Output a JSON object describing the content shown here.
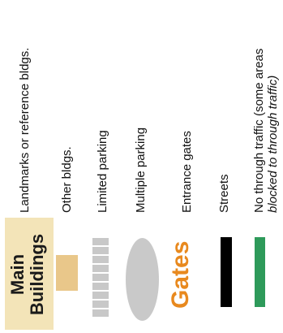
{
  "legend": {
    "landmarks": {
      "label": "Landmarks or reference bldgs.",
      "swatch_text_line1": "Main",
      "swatch_text_line2": "Buildings",
      "swatch_color": "#f3e4b8"
    },
    "other_bldgs": {
      "label": "Other bldgs.",
      "swatch_color": "#e9c78a"
    },
    "limited_parking": {
      "label": "Limited parking",
      "swatch_color": "#c8c8c8"
    },
    "multiple_parking": {
      "label": "Multiple parking",
      "swatch_color": "#c9c9c9"
    },
    "entrance_gates": {
      "label": "Entrance gates",
      "swatch_text": "Gates",
      "swatch_color": "#e8891e"
    },
    "streets": {
      "label": "Streets",
      "swatch_color": "#000000"
    },
    "no_through_traffic": {
      "label_line1": "No through traffic (some areas",
      "label_line2": "blocked to through traffic)",
      "swatch_color": "#2e9a5a"
    }
  }
}
